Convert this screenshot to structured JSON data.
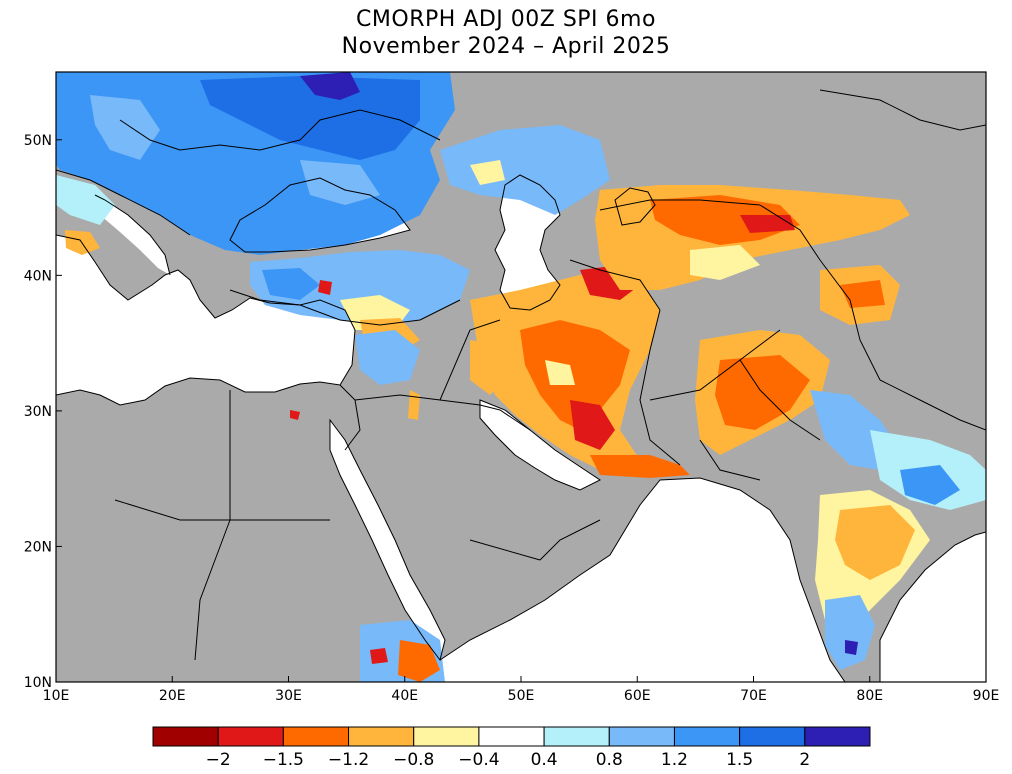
{
  "title": {
    "line1": "CMORPH ADJ 00Z SPI 6mo",
    "line2": "November 2024 – April 2025"
  },
  "map": {
    "projection": "lat-lon",
    "lon_range": [
      10,
      90
    ],
    "lat_range": [
      10,
      55
    ],
    "x_ticks": [
      "10E",
      "20E",
      "30E",
      "40E",
      "50E",
      "60E",
      "70E",
      "80E",
      "90E"
    ],
    "y_ticks": [
      "10N",
      "20N",
      "30N",
      "40N",
      "50N"
    ],
    "missing_color": "#aaaaaa",
    "ocean_color": "#ffffff",
    "border_color": "#000000"
  },
  "colorbar": {
    "colors": [
      "#a00000",
      "#e01818",
      "#ff6a00",
      "#ffb53c",
      "#fff5a0",
      "#ffffff",
      "#b4f0fa",
      "#78b9fa",
      "#3c96f5",
      "#1e6ee6",
      "#2d1eb4"
    ],
    "tick_labels": [
      "−2",
      "−1.5",
      "−1.2",
      "−0.8",
      "−0.4",
      "0.4",
      "0.8",
      "1.2",
      "1.5",
      "2"
    ]
  }
}
